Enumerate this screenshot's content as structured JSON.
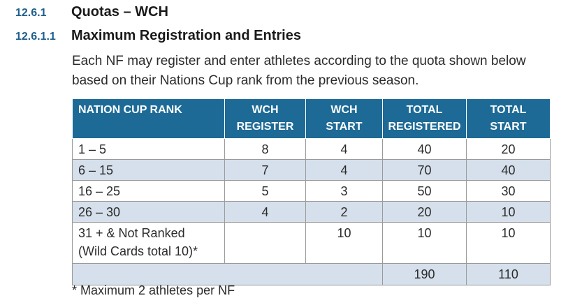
{
  "section": {
    "number": "12.6.1",
    "title": "Quotas – WCH"
  },
  "subsection": {
    "number": "12.6.1.1",
    "title": "Maximum Registration and Entries"
  },
  "paragraph": "Each NF may register and enter athletes according to the quota shown below based on their Nations Cup rank from the previous season.",
  "table": {
    "headers": {
      "h0": "NATION CUP RANK",
      "h1a": "WCH",
      "h1b": "REGISTER",
      "h2a": "WCH",
      "h2b": "START",
      "h3a": "TOTAL",
      "h3b": "REGISTERED",
      "h4a": "TOTAL",
      "h4b": "START"
    },
    "rows": [
      {
        "rank": "1 – 5",
        "register": "8",
        "start": "4",
        "total_registered": "40",
        "total_start": "20"
      },
      {
        "rank": "6 – 15",
        "register": "7",
        "start": "4",
        "total_registered": "70",
        "total_start": "40"
      },
      {
        "rank": "16 – 25",
        "register": "5",
        "start": "3",
        "total_registered": "50",
        "total_start": "30"
      },
      {
        "rank": "26 – 30",
        "register": "4",
        "start": "2",
        "total_registered": "20",
        "total_start": "10"
      },
      {
        "rank_line1": "31 + & Not Ranked",
        "rank_line2": "(Wild Cards total 10)*",
        "register": "",
        "start": "10",
        "total_registered": "10",
        "total_start": "10"
      }
    ],
    "totals": {
      "total_registered": "190",
      "total_start": "110"
    }
  },
  "footnote": "* Maximum 2 athletes per NF"
}
